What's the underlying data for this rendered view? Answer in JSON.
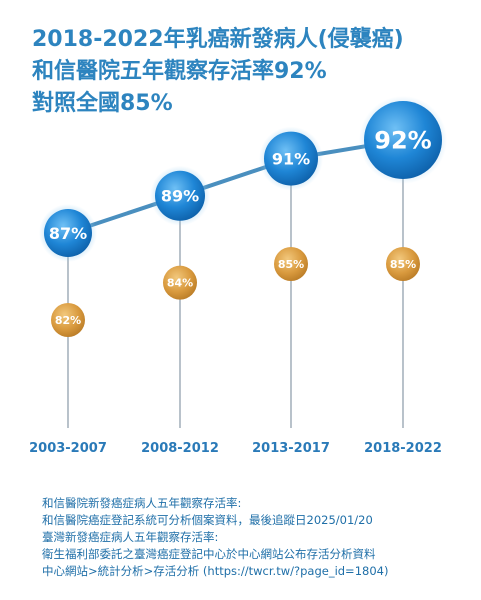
{
  "title": {
    "line1": "2018-2022年乳癌新發病人(侵襲癌)",
    "line2": "和信醫院五年觀察存活率92%",
    "line3": "對照全國85%"
  },
  "colors": {
    "hospital": "#1f86d6",
    "national": "#d99a3e",
    "line": "#4a8fbf",
    "category": "#2a7ab8"
  },
  "chart_data": {
    "type": "line",
    "categories": [
      "2003-2007",
      "2008-2012",
      "2013-2017",
      "2018-2022"
    ],
    "series": [
      {
        "name": "",
        "values": [
          87,
          89,
          91,
          92
        ],
        "labels": [
          "87%",
          "89%",
          "91%",
          "92%"
        ]
      },
      {
        "name": "",
        "values": [
          82,
          84,
          85,
          85
        ],
        "labels": [
          "82%",
          "84%",
          "85%",
          "85%"
        ]
      }
    ]
  },
  "source": {
    "line1": "和信醫院新發癌症病人五年觀察存活率:",
    "line2": "和信醫院癌症登記系統可分析個案資料，最後追蹤日2025/01/20",
    "line3": "臺灣新發癌症病人五年觀察存活率:",
    "line4": "衛生福利部委託之臺灣癌症登記中心於中心網站公布存活分析資料",
    "line5": "中心網站>統計分析>存活分析 (https://twcr.tw/?page_id=1804)"
  }
}
